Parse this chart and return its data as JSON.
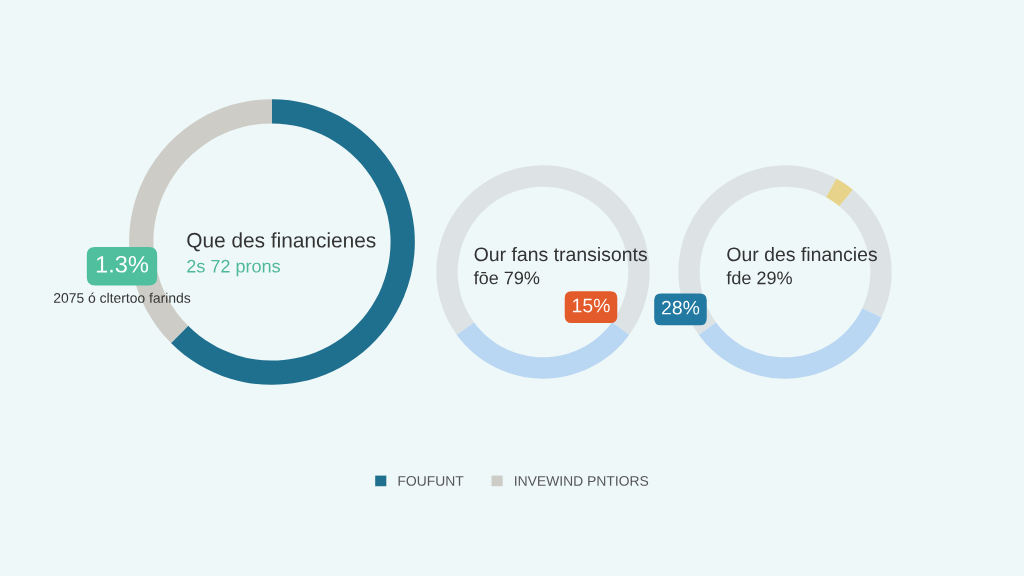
{
  "chart_data": [
    {
      "type": "donut",
      "categories": [
        "FOUFUNT",
        "INVEWIND PNTIORS"
      ],
      "values": [
        62.5,
        37.5
      ],
      "colors": [
        "#1f6f8f",
        "#cdccc7"
      ],
      "legend": "bottom",
      "annotations": [
        "Que des financienes",
        "2s 72 prons",
        "1.3%",
        "2075 ó cltertoo farinds"
      ]
    },
    {
      "type": "donut",
      "categories": [
        null,
        null,
        null
      ],
      "values": [
        35,
        30,
        35
      ],
      "colors": [
        "#dde3e5",
        "#b9d6f2",
        "#dde3e5"
      ],
      "annotations": [
        "Our fans transisonts",
        "fōe 79%",
        "15%"
      ]
    },
    {
      "type": "donut",
      "categories": [
        null,
        null,
        null,
        null,
        null
      ],
      "values": [
        8,
        3,
        21,
        33,
        35
      ],
      "colors": [
        "#dde3e5",
        "#e8d38a",
        "#dde3e5",
        "#b9d6f2",
        "#dde3e5"
      ],
      "annotations": [
        "Our des financies",
        "fde 29%",
        "28%"
      ]
    }
  ]
}
